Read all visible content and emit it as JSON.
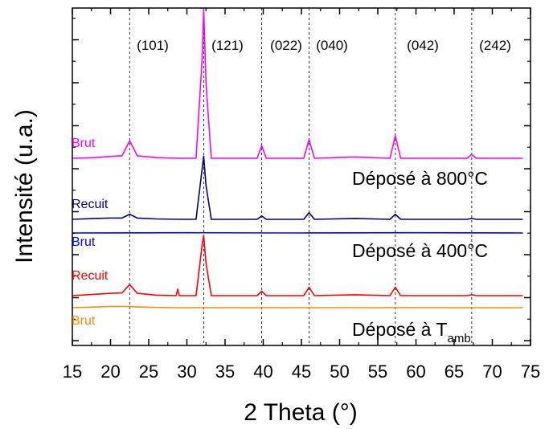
{
  "chart_data": {
    "type": "line",
    "xlabel": "2 Theta (°)",
    "ylabel": "Intensité (u.a.)",
    "xlim": [
      15,
      75
    ],
    "x_ticks": [
      15,
      20,
      25,
      30,
      35,
      40,
      45,
      50,
      55,
      60,
      65,
      70,
      75
    ],
    "peaks": [
      {
        "label": "(101)",
        "x": 22.5
      },
      {
        "label": "(121)",
        "x": 32.2
      },
      {
        "label": "(022)",
        "x": 39.8
      },
      {
        "label": "(040)",
        "x": 46.0
      },
      {
        "label": "(042)",
        "x": 57.3
      },
      {
        "label": "(242)",
        "x": 67.3
      }
    ],
    "group_labels": [
      {
        "text": "Déposé à 800°C",
        "sub": ""
      },
      {
        "text": "Déposé à 400°C",
        "sub": ""
      },
      {
        "text": "Déposé à T",
        "sub": "amb"
      }
    ],
    "series": [
      {
        "name": "Brut",
        "color": "#ff00ff",
        "x": [
          15,
          18,
          20,
          21.5,
          22.5,
          23.5,
          26,
          29,
          31.2,
          32.0,
          32.2,
          32.5,
          33.2,
          36,
          39.2,
          39.8,
          40.4,
          45.3,
          46.0,
          46.7,
          52,
          56.6,
          57.3,
          58.0,
          66.7,
          67.3,
          67.9,
          74
        ],
        "y": [
          0,
          0.5,
          1.5,
          2,
          14,
          2,
          0.5,
          0,
          0,
          80,
          120,
          60,
          0,
          0,
          0,
          10,
          0,
          0,
          15,
          0,
          1,
          0,
          18,
          0,
          0,
          3,
          0,
          0
        ]
      },
      {
        "name": "Recuit",
        "color": "#000080",
        "x": [
          15,
          18,
          20,
          21.5,
          22.5,
          23.5,
          26,
          29,
          31.2,
          32.0,
          32.2,
          32.5,
          33.2,
          36,
          39.2,
          39.8,
          40.4,
          45.3,
          46.0,
          46.7,
          52,
          56.6,
          57.3,
          58.0,
          66.7,
          67.3,
          67.9,
          74
        ],
        "y": [
          0,
          1,
          1.5,
          1.5,
          6,
          1.5,
          0.5,
          0,
          0,
          60,
          75,
          40,
          0,
          0,
          0,
          4,
          0,
          0,
          8,
          0,
          1,
          0,
          6,
          0,
          0,
          1,
          0,
          0
        ]
      },
      {
        "name": "Brut",
        "color": "#0000ff",
        "x": [
          15,
          30,
          45,
          60,
          74
        ],
        "y": [
          0,
          0.3,
          0,
          0.3,
          0
        ]
      },
      {
        "name": "Recuit",
        "color": "#ff0000",
        "x": [
          15,
          18,
          20,
          21.5,
          22.5,
          23.5,
          26,
          28.6,
          28.8,
          29.0,
          29.4,
          31.2,
          32.0,
          32.2,
          32.5,
          33.2,
          36,
          39.2,
          39.8,
          40.4,
          45.3,
          46.0,
          46.7,
          52,
          56.6,
          57.3,
          58.0,
          66.7,
          67.3,
          67.9,
          74
        ],
        "y": [
          0,
          1.5,
          2.5,
          3,
          12,
          2.5,
          0.5,
          0,
          7,
          0,
          0,
          0,
          55,
          65,
          35,
          0,
          0,
          0,
          5,
          0,
          0,
          9,
          0,
          1,
          0,
          9,
          0,
          0,
          1,
          0,
          0
        ]
      },
      {
        "name": "Brut",
        "color": "#ff8c00",
        "x": [
          15,
          18,
          20,
          22,
          24,
          28,
          40,
          60,
          74
        ],
        "y": [
          0,
          0.8,
          1.5,
          1.5,
          0.8,
          0,
          0,
          0,
          0
        ]
      }
    ]
  }
}
